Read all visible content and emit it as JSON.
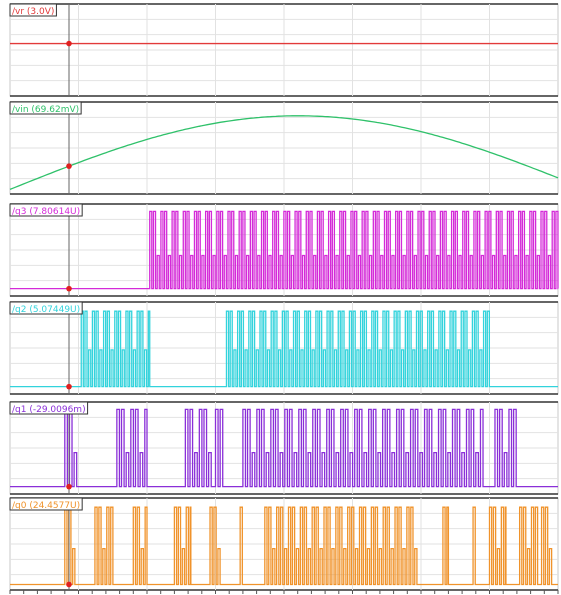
{
  "chart_data": {
    "type": "line",
    "grid": true,
    "cursor_marker": "red dot on each trace at the vertical cursor",
    "panels": [
      {
        "label": "/vr",
        "readout": "(3.0V)",
        "color": "#e23a3a",
        "kind": "flat",
        "level": 0.57
      },
      {
        "label": "/vin",
        "readout": "(69.62mV)",
        "color": "#2fc16a",
        "kind": "sine",
        "start": 0.05,
        "peak": 0.85
      },
      {
        "label": "/q3",
        "readout": "(7.80614U)",
        "color": "#d42ad8",
        "kind": "pwm",
        "segments": [
          [
            0.255,
            1.0
          ]
        ],
        "period": 0.0068,
        "low": 0.08,
        "mid": 0.44,
        "high": 0.92
      },
      {
        "label": "/q2",
        "readout": "(5.07449U)",
        "color": "#32d3dc",
        "kind": "pwm",
        "segments": [
          [
            0.13,
            0.255
          ],
          [
            0.395,
            0.875
          ]
        ],
        "period": 0.0068,
        "low": 0.08,
        "mid": 0.48,
        "high": 0.9
      },
      {
        "label": "/q1",
        "readout": "(-29.0096m)",
        "color": "#8a2fd8",
        "kind": "pwm",
        "segments": [
          [
            0.1,
            0.125
          ],
          [
            0.195,
            0.25
          ],
          [
            0.32,
            0.37
          ],
          [
            0.375,
            0.39
          ],
          [
            0.425,
            0.865
          ],
          [
            0.885,
            0.925
          ]
        ],
        "period": 0.0085,
        "low": 0.08,
        "mid": 0.45,
        "high": 0.92
      },
      {
        "label": "/q0",
        "readout": "(24.4577U)",
        "color": "#f0932b",
        "kind": "pwm",
        "segments": [
          [
            0.1,
            0.12
          ],
          [
            0.155,
            0.19
          ],
          [
            0.225,
            0.25
          ],
          [
            0.3,
            0.33
          ],
          [
            0.365,
            0.385
          ],
          [
            0.42,
            0.425
          ],
          [
            0.465,
            0.745
          ],
          [
            0.79,
            0.8
          ],
          [
            0.845,
            0.85
          ],
          [
            0.875,
            0.905
          ],
          [
            0.93,
            0.965
          ],
          [
            0.97,
            0.99
          ]
        ],
        "period": 0.0072,
        "low": 0.06,
        "mid": 0.45,
        "high": 0.9
      }
    ]
  }
}
